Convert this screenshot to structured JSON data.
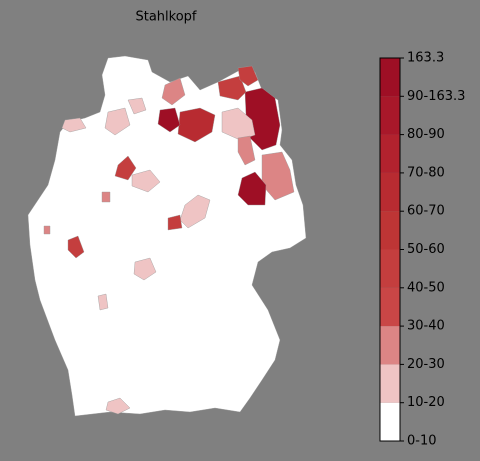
{
  "title": "Stahlkopf",
  "colorbar": {
    "labels": [
      "0-10",
      "10-20",
      "20-30",
      "30-40",
      "40-50",
      "50-60",
      "60-70",
      "70-80",
      "80-90",
      "90-163.3",
      "163.3"
    ],
    "colors": [
      "#ffffff",
      "#efc4c4",
      "#dc8585",
      "#c94646",
      "#c43e3e",
      "#be3535",
      "#b82b31",
      "#b2222e",
      "#a8182a",
      "#9e0f25"
    ]
  }
}
